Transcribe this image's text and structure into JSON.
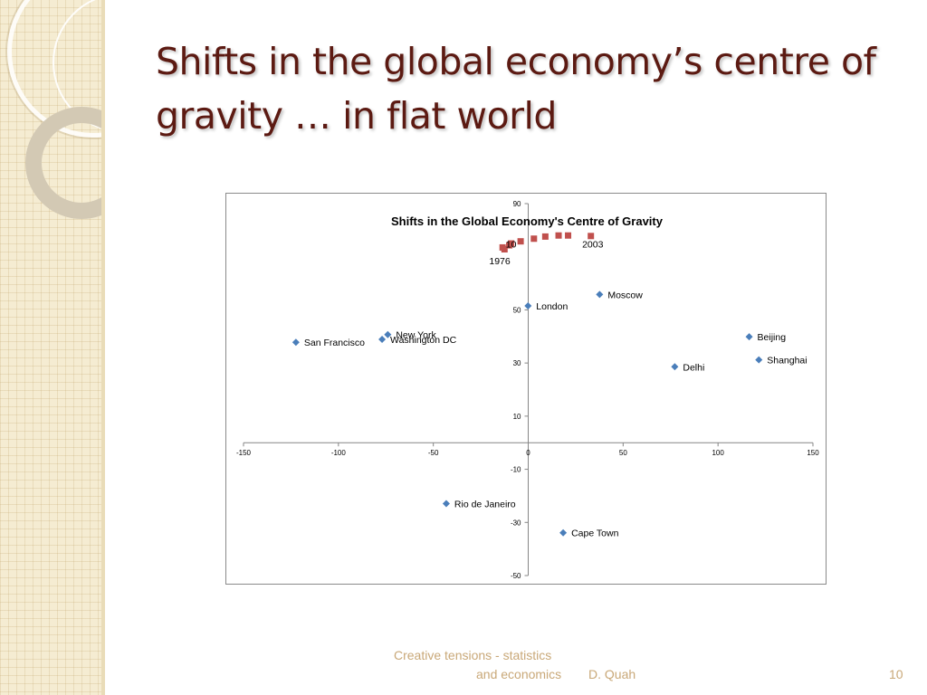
{
  "slide": {
    "title": "Shifts in the global economy’s centre of gravity … in flat world",
    "footer_line1": "Creative tensions - statistics",
    "footer_line2": "and economics",
    "footer_author": "D. Quah",
    "page_number": "10"
  },
  "colors": {
    "title": "#5c1a12",
    "city_marker": "#4a7eba",
    "gravity_marker": "#c0504d",
    "footer": "#c9a878"
  },
  "chart_data": {
    "type": "scatter",
    "title": "Shifts in the Global Economy's Centre of Gravity",
    "xlim": [
      -150,
      150
    ],
    "ylim": [
      -50,
      90
    ],
    "x_ticks": [
      -150,
      -100,
      -50,
      0,
      50,
      100,
      150
    ],
    "y_ticks": [
      90,
      50,
      30,
      10,
      -10,
      -30,
      -50
    ],
    "grid": false,
    "series": [
      {
        "marker": "diamond",
        "points": [
          {
            "x": -122.4,
            "y": 37.8,
            "label": "San Francisco"
          },
          {
            "x": -74.0,
            "y": 40.7,
            "label": "New York"
          },
          {
            "x": -77.0,
            "y": 38.9,
            "label": "Washington DC"
          },
          {
            "x": -0.1,
            "y": 51.5,
            "label": "London"
          },
          {
            "x": 37.6,
            "y": 55.8,
            "label": "Moscow"
          },
          {
            "x": 116.4,
            "y": 39.9,
            "label": "Beijing"
          },
          {
            "x": 121.5,
            "y": 31.2,
            "label": "Shanghai"
          },
          {
            "x": 77.2,
            "y": 28.6,
            "label": "Delhi"
          },
          {
            "x": -43.2,
            "y": -22.9,
            "label": "Rio de Janeiro"
          },
          {
            "x": 18.4,
            "y": -33.9,
            "label": "Cape Town"
          }
        ]
      },
      {
        "marker": "square",
        "points": [
          {
            "x": -13.5,
            "y": 73.5
          },
          {
            "x": -12.5,
            "y": 72.8
          },
          {
            "x": -10.0,
            "y": 74.3
          },
          {
            "x": -9.0,
            "y": 75.0
          },
          {
            "x": -4.0,
            "y": 75.8
          },
          {
            "x": 3.0,
            "y": 76.8
          },
          {
            "x": 9.0,
            "y": 77.6
          },
          {
            "x": 16.0,
            "y": 78.0
          },
          {
            "x": 21.0,
            "y": 78.0
          },
          {
            "x": 33.0,
            "y": 77.8
          }
        ]
      }
    ],
    "annotations": [
      {
        "text": "1976",
        "x": -15,
        "y": 68.5
      },
      {
        "text": "10",
        "x": -9,
        "y": 74.8
      },
      {
        "text": "2003",
        "x": 34,
        "y": 74.8
      }
    ]
  }
}
